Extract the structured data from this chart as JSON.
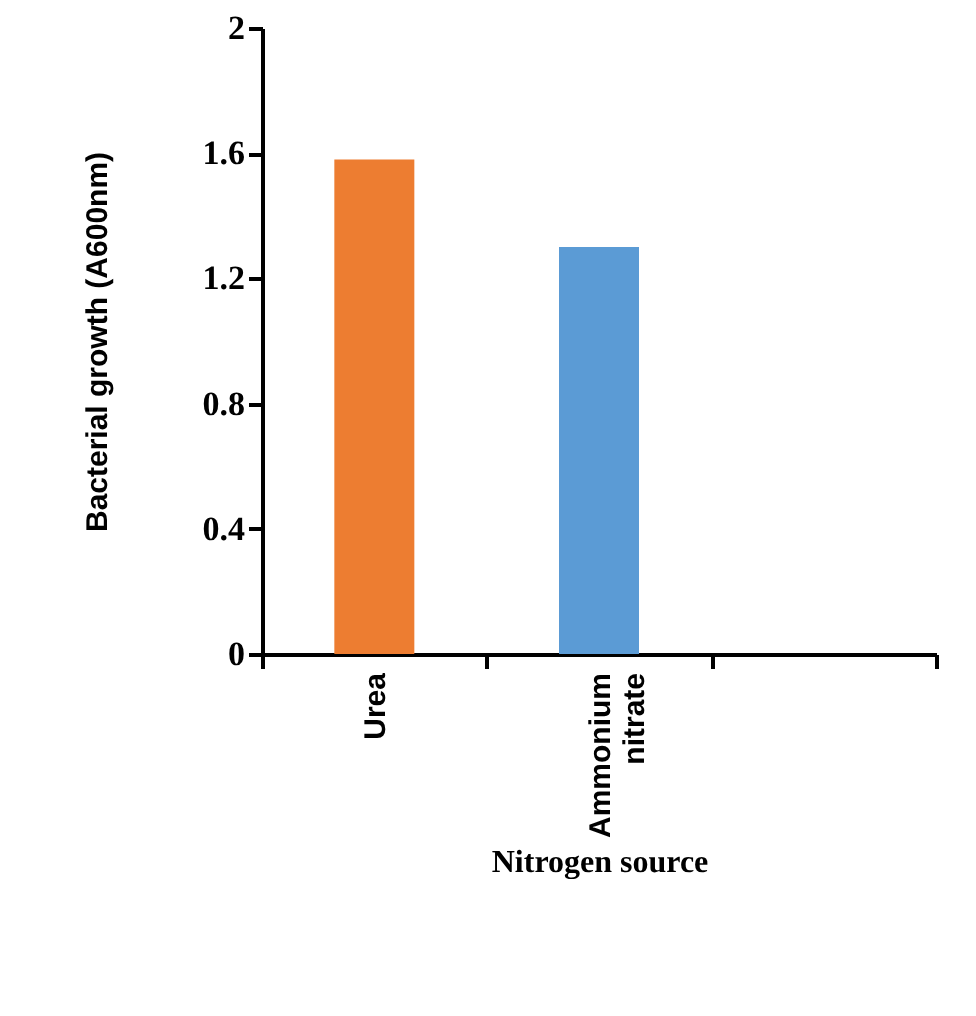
{
  "chart_data": {
    "type": "bar",
    "categories": [
      "Urea",
      "Ammonium nitrate",
      null
    ],
    "values": [
      1.58,
      1.3,
      null
    ],
    "colors": [
      "#ed7d31",
      "#5b9bd5",
      "#5b9bd5"
    ],
    "xlabel": "Nitrogen source",
    "ylabel": "Bacterial growth (A600nm)",
    "ylim": [
      0,
      2
    ],
    "yticks": [
      {
        "value": 0,
        "label": "0"
      },
      {
        "value": 0.4,
        "label": "0.4"
      },
      {
        "value": 0.8,
        "label": "0.8"
      },
      {
        "value": 1.2,
        "label": "1.2"
      },
      {
        "value": 1.6,
        "label": "1.6"
      },
      {
        "value": 2,
        "label": "2"
      }
    ],
    "grid": false
  }
}
